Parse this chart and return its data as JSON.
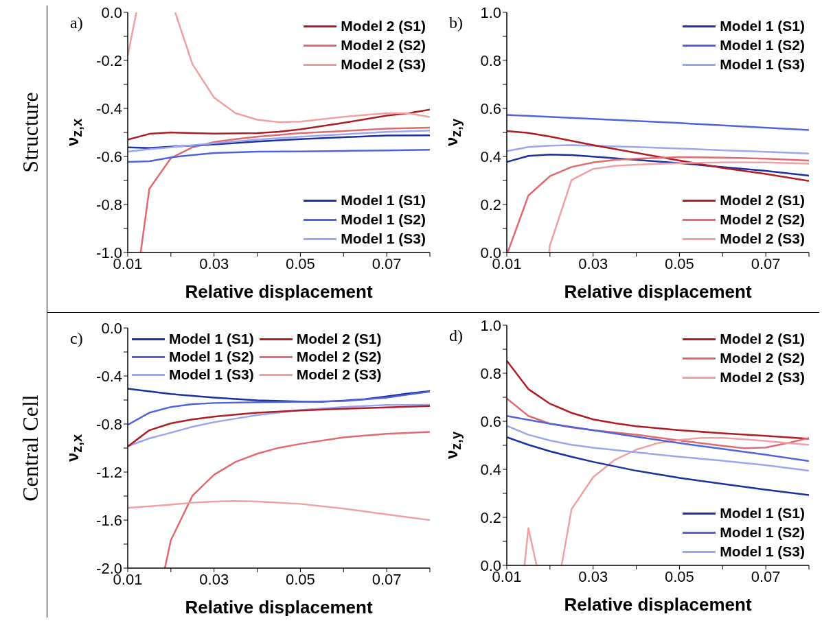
{
  "chart_data": [
    {
      "type": "line",
      "xlabel": "Relative displacement",
      "ylabel": "ν$_{z,x}$",
      "annotations": [
        "a)",
        "Structure"
      ],
      "legend": "right",
      "xlim": [
        0.01,
        0.08
      ],
      "xticks": [
        0.01,
        {
          "value": 0.02,
          "label": null
        },
        0.03,
        {
          "value": 0.04,
          "label": null
        },
        0.05,
        {
          "value": 0.06,
          "label": null
        },
        0.07,
        {
          "value": 0.08,
          "label": null
        }
      ],
      "ylim": [
        -1.0,
        0.0
      ],
      "yticks": [
        {
          "value": -1.0,
          "label": "-1.0"
        },
        {
          "value": -0.9,
          "label": null
        },
        -0.8,
        {
          "value": -0.7,
          "label": null
        },
        -0.6,
        {
          "value": -0.5,
          "label": null
        },
        -0.4,
        {
          "value": -0.3,
          "label": null
        },
        -0.2,
        {
          "value": -0.1,
          "label": null
        },
        {
          "value": 0,
          "label": "0.0"
        }
      ],
      "series": [
        {
          "name": "Model 2 (S1)",
          "color": "#b01c24",
          "x": [
            0.01,
            0.015,
            0.02,
            0.03,
            0.04,
            0.045,
            0.05,
            0.06,
            0.07,
            0.075,
            0.08
          ],
          "values": [
            -0.53,
            -0.506,
            -0.5,
            -0.505,
            -0.503,
            -0.497,
            -0.487,
            -0.46,
            -0.43,
            -0.42,
            -0.405
          ]
        },
        {
          "name": "Model 2 (S2)",
          "color": "#e06a6f",
          "x": [
            0.013,
            0.015,
            0.02,
            0.025,
            0.03,
            0.035,
            0.04,
            0.05,
            0.06,
            0.07,
            0.08
          ],
          "values": [
            -1.0,
            -0.735,
            -0.607,
            -0.562,
            -0.54,
            -0.528,
            -0.518,
            -0.503,
            -0.494,
            -0.484,
            -0.48
          ]
        },
        {
          "name": "Model 2 (S3)",
          "color": "#f0a0a3",
          "x": [
            0.01,
            0.012,
            0.017,
            0.021,
            0.025,
            0.03,
            0.035,
            0.04,
            0.045,
            0.05,
            0.055,
            0.06,
            0.065,
            0.07,
            0.075,
            0.08
          ],
          "values": [
            -0.18,
            0.0,
            null,
            0.0,
            -0.216,
            -0.355,
            -0.42,
            -0.447,
            -0.457,
            -0.455,
            -0.445,
            -0.435,
            -0.427,
            -0.42,
            -0.42,
            -0.436
          ]
        },
        {
          "name": "Model 1 (S1)",
          "color": "#1a2fa0",
          "x": [
            0.01,
            0.015,
            0.02,
            0.03,
            0.04,
            0.05,
            0.06,
            0.07,
            0.08
          ],
          "values": [
            -0.562,
            -0.565,
            -0.559,
            -0.55,
            -0.538,
            -0.528,
            -0.52,
            -0.513,
            -0.512
          ]
        },
        {
          "name": "Model 1 (S2)",
          "color": "#4f63dc",
          "x": [
            0.01,
            0.015,
            0.02,
            0.025,
            0.03,
            0.04,
            0.05,
            0.06,
            0.07,
            0.08
          ],
          "values": [
            -0.623,
            -0.62,
            -0.604,
            -0.594,
            -0.586,
            -0.58,
            -0.579,
            -0.577,
            -0.575,
            -0.572
          ]
        },
        {
          "name": "Model 1 (S3)",
          "color": "#9aa6ee",
          "x": [
            0.01,
            0.015,
            0.02,
            0.03,
            0.04,
            0.05,
            0.06,
            0.07,
            0.08
          ],
          "values": [
            -0.58,
            -0.57,
            -0.562,
            -0.545,
            -0.53,
            -0.518,
            -0.508,
            -0.498,
            -0.492
          ]
        }
      ]
    },
    {
      "type": "line",
      "xlabel": "Relative displacement",
      "ylabel": "ν$_{z,y}$",
      "annotations": [
        "b)"
      ],
      "legend": "right",
      "xlim": [
        0.01,
        0.08
      ],
      "xticks": [
        0.01,
        {
          "value": 0.02,
          "label": null
        },
        0.03,
        {
          "value": 0.04,
          "label": null
        },
        0.05,
        {
          "value": 0.06,
          "label": null
        },
        0.07,
        {
          "value": 0.08,
          "label": null
        }
      ],
      "ylim": [
        0.0,
        1.0
      ],
      "yticks": [
        {
          "value": 0,
          "label": "0.0"
        },
        {
          "value": 0.1,
          "label": null
        },
        0.2,
        {
          "value": 0.3,
          "label": null
        },
        0.4,
        {
          "value": 0.5,
          "label": null
        },
        0.6,
        {
          "value": 0.7,
          "label": null
        },
        0.8,
        {
          "value": 0.9,
          "label": null
        },
        {
          "value": 1.0,
          "label": "1.0"
        }
      ],
      "series": [
        {
          "name": "Model 1 (S1)",
          "color": "#1a2fa0",
          "x": [
            0.01,
            0.015,
            0.02,
            0.025,
            0.03,
            0.04,
            0.05,
            0.06,
            0.07,
            0.08
          ],
          "values": [
            0.377,
            0.402,
            0.408,
            0.406,
            0.399,
            0.386,
            0.372,
            0.356,
            0.34,
            0.32
          ]
        },
        {
          "name": "Model 1 (S2)",
          "color": "#4f63dc",
          "x": [
            0.01,
            0.05,
            0.08
          ],
          "values": [
            0.573,
            0.539,
            0.51
          ]
        },
        {
          "name": "Model 1 (S3)",
          "color": "#9aa6ee",
          "x": [
            0.01,
            0.015,
            0.02,
            0.025,
            0.03,
            0.04,
            0.05,
            0.06,
            0.07,
            0.08
          ],
          "values": [
            0.422,
            0.439,
            0.445,
            0.447,
            0.444,
            0.439,
            0.433,
            0.426,
            0.419,
            0.412
          ]
        },
        {
          "name": "Model 2 (S1)",
          "color": "#b01c24",
          "x": [
            0.01,
            0.015,
            0.02,
            0.03,
            0.04,
            0.05,
            0.06,
            0.07,
            0.08
          ],
          "values": [
            0.506,
            0.498,
            0.483,
            0.447,
            0.415,
            0.383,
            0.352,
            0.327,
            0.298
          ]
        },
        {
          "name": "Model 2 (S2)",
          "color": "#e06a6f",
          "x": [
            0.0102,
            0.015,
            0.02,
            0.025,
            0.03,
            0.035,
            0.04,
            0.05,
            0.06,
            0.07,
            0.08
          ],
          "values": [
            0.0,
            0.237,
            0.318,
            0.356,
            0.375,
            0.386,
            0.391,
            0.397,
            0.395,
            0.391,
            0.383
          ]
        },
        {
          "name": "Model 2 (S3)",
          "color": "#f0a0a3",
          "x": [
            0.0198,
            0.02,
            0.025,
            0.03,
            0.035,
            0.04,
            0.05,
            0.06,
            0.07,
            0.08
          ],
          "values": [
            0.0,
            0.03,
            0.302,
            0.348,
            0.361,
            0.366,
            0.372,
            0.375,
            0.375,
            0.37
          ]
        }
      ]
    },
    {
      "type": "line",
      "xlabel": "Relative displacement",
      "ylabel": "ν$_{z,x}$",
      "annotations": [
        "c)",
        "Central Cell"
      ],
      "legend": "top",
      "xlim": [
        0.01,
        0.08
      ],
      "xticks": [
        0.01,
        {
          "value": 0.02,
          "label": null
        },
        0.03,
        {
          "value": 0.04,
          "label": null
        },
        0.05,
        {
          "value": 0.06,
          "label": null
        },
        0.07,
        {
          "value": 0.08,
          "label": null
        }
      ],
      "ylim": [
        -2.0,
        0.0
      ],
      "yticks": [
        {
          "value": -2.0,
          "label": "-2.0"
        },
        {
          "value": -1.8,
          "label": null
        },
        -1.6,
        {
          "value": -1.4,
          "label": null
        },
        -1.2,
        {
          "value": -1.0,
          "label": null
        },
        -0.8,
        {
          "value": -0.6,
          "label": null
        },
        -0.4,
        {
          "value": -0.2,
          "label": null
        },
        {
          "value": 0,
          "label": "0.0"
        }
      ],
      "series": [
        {
          "name": "Model 1 (S1)",
          "color": "#1a2fa0",
          "x": [
            0.01,
            0.02,
            0.03,
            0.04,
            0.05,
            0.055,
            0.06,
            0.065,
            0.07,
            0.075,
            0.08
          ],
          "values": [
            -0.506,
            -0.55,
            -0.58,
            -0.603,
            -0.613,
            -0.615,
            -0.605,
            -0.593,
            -0.57,
            -0.545,
            -0.525
          ]
        },
        {
          "name": "Model 1 (S2)",
          "color": "#4f63dc",
          "x": [
            0.01,
            0.015,
            0.02,
            0.025,
            0.03,
            0.04,
            0.05,
            0.06,
            0.07,
            0.075,
            0.08
          ],
          "values": [
            -0.807,
            -0.706,
            -0.658,
            -0.634,
            -0.625,
            -0.619,
            -0.615,
            -0.609,
            -0.58,
            -0.555,
            -0.53
          ]
        },
        {
          "name": "Model 1 (S3)",
          "color": "#9aa6ee",
          "x": [
            0.01,
            0.015,
            0.02,
            0.025,
            0.03,
            0.035,
            0.04,
            0.05,
            0.06,
            0.07,
            0.08
          ],
          "values": [
            -0.984,
            -0.92,
            -0.872,
            -0.823,
            -0.784,
            -0.755,
            -0.726,
            -0.683,
            -0.658,
            -0.642,
            -0.64
          ]
        },
        {
          "name": "Model 2 (S1)",
          "color": "#b01c24",
          "x": [
            0.01,
            0.015,
            0.02,
            0.025,
            0.03,
            0.035,
            0.04,
            0.05,
            0.06,
            0.07,
            0.08
          ],
          "values": [
            -0.988,
            -0.852,
            -0.794,
            -0.761,
            -0.739,
            -0.722,
            -0.706,
            -0.687,
            -0.673,
            -0.661,
            -0.65
          ]
        },
        {
          "name": "Model 2 (S2)",
          "color": "#e06a6f",
          "x": [
            0.0186,
            0.02,
            0.025,
            0.03,
            0.035,
            0.04,
            0.045,
            0.05,
            0.06,
            0.07,
            0.08
          ],
          "values": [
            -2.0,
            -1.767,
            -1.397,
            -1.222,
            -1.115,
            -1.047,
            -0.998,
            -0.965,
            -0.911,
            -0.881,
            -0.865
          ]
        },
        {
          "name": "Model 2 (S3)",
          "color": "#f0a0a3",
          "x": [
            0.01,
            0.02,
            0.025,
            0.03,
            0.035,
            0.04,
            0.05,
            0.06,
            0.07,
            0.08
          ],
          "values": [
            -1.498,
            -1.471,
            -1.455,
            -1.446,
            -1.442,
            -1.446,
            -1.465,
            -1.504,
            -1.553,
            -1.6
          ]
        }
      ]
    },
    {
      "type": "line",
      "xlabel": "Relative displacement",
      "ylabel": "ν$_{z,y}$",
      "annotations": [
        "d)"
      ],
      "legend": "right",
      "xlim": [
        0.01,
        0.08
      ],
      "xticks": [
        0.01,
        {
          "value": 0.02,
          "label": null
        },
        0.03,
        {
          "value": 0.04,
          "label": null
        },
        0.05,
        {
          "value": 0.06,
          "label": null
        },
        0.07,
        {
          "value": 0.08,
          "label": null
        }
      ],
      "ylim": [
        0.0,
        1.0
      ],
      "yticks": [
        {
          "value": 0,
          "label": "0.0"
        },
        {
          "value": 0.1,
          "label": null
        },
        0.2,
        {
          "value": 0.3,
          "label": null
        },
        0.4,
        {
          "value": 0.5,
          "label": null
        },
        0.6,
        {
          "value": 0.7,
          "label": null
        },
        0.8,
        {
          "value": 0.9,
          "label": null
        },
        {
          "value": 1.0,
          "label": "1.0"
        }
      ],
      "series": [
        {
          "name": "Model 2 (S1)",
          "color": "#b01c24",
          "x": [
            0.01,
            0.015,
            0.02,
            0.025,
            0.03,
            0.035,
            0.04,
            0.05,
            0.06,
            0.07,
            0.08
          ],
          "values": [
            0.852,
            0.734,
            0.673,
            0.635,
            0.608,
            0.592,
            0.579,
            0.563,
            0.55,
            0.539,
            0.527
          ]
        },
        {
          "name": "Model 2 (S2)",
          "color": "#e06a6f",
          "x": [
            0.01,
            0.015,
            0.02,
            0.025,
            0.03,
            0.04,
            0.05,
            0.06,
            0.065,
            0.07,
            0.075,
            0.08
          ],
          "values": [
            0.695,
            0.622,
            0.59,
            0.574,
            0.563,
            0.544,
            0.52,
            0.498,
            0.488,
            0.491,
            0.509,
            0.531
          ]
        },
        {
          "name": "Model 2 (S3)",
          "color": "#f0a0a3",
          "x": [
            0.0141,
            0.015,
            0.0169,
            0.02,
            0.0227,
            0.025,
            0.03,
            0.035,
            0.04,
            0.045,
            0.05,
            0.055,
            0.06,
            0.065,
            0.07,
            0.075,
            0.08
          ],
          "values": [
            0.0,
            0.155,
            0.0,
            null,
            0.0,
            0.234,
            0.367,
            0.439,
            0.482,
            0.509,
            0.522,
            0.531,
            0.531,
            0.525,
            0.518,
            0.509,
            0.502
          ]
        },
        {
          "name": "Model 1 (S1)",
          "color": "#1a2fa0",
          "x": [
            0.01,
            0.015,
            0.02,
            0.025,
            0.03,
            0.04,
            0.05,
            0.06,
            0.07,
            0.08
          ],
          "values": [
            0.534,
            0.502,
            0.475,
            0.452,
            0.431,
            0.394,
            0.364,
            0.339,
            0.315,
            0.293
          ]
        },
        {
          "name": "Model 1 (S2)",
          "color": "#4f63dc",
          "x": [
            0.01,
            0.015,
            0.02,
            0.04,
            0.05,
            0.06,
            0.07,
            0.08
          ],
          "values": [
            0.622,
            0.606,
            0.59,
            0.536,
            0.509,
            0.485,
            0.461,
            0.434
          ]
        },
        {
          "name": "Model 1 (S3)",
          "color": "#9aa6ee",
          "x": [
            0.01,
            0.015,
            0.02,
            0.025,
            0.03,
            0.04,
            0.05,
            0.06,
            0.07,
            0.08
          ],
          "values": [
            0.581,
            0.544,
            0.52,
            0.502,
            0.49,
            0.471,
            0.452,
            0.436,
            0.417,
            0.394
          ]
        }
      ]
    }
  ]
}
